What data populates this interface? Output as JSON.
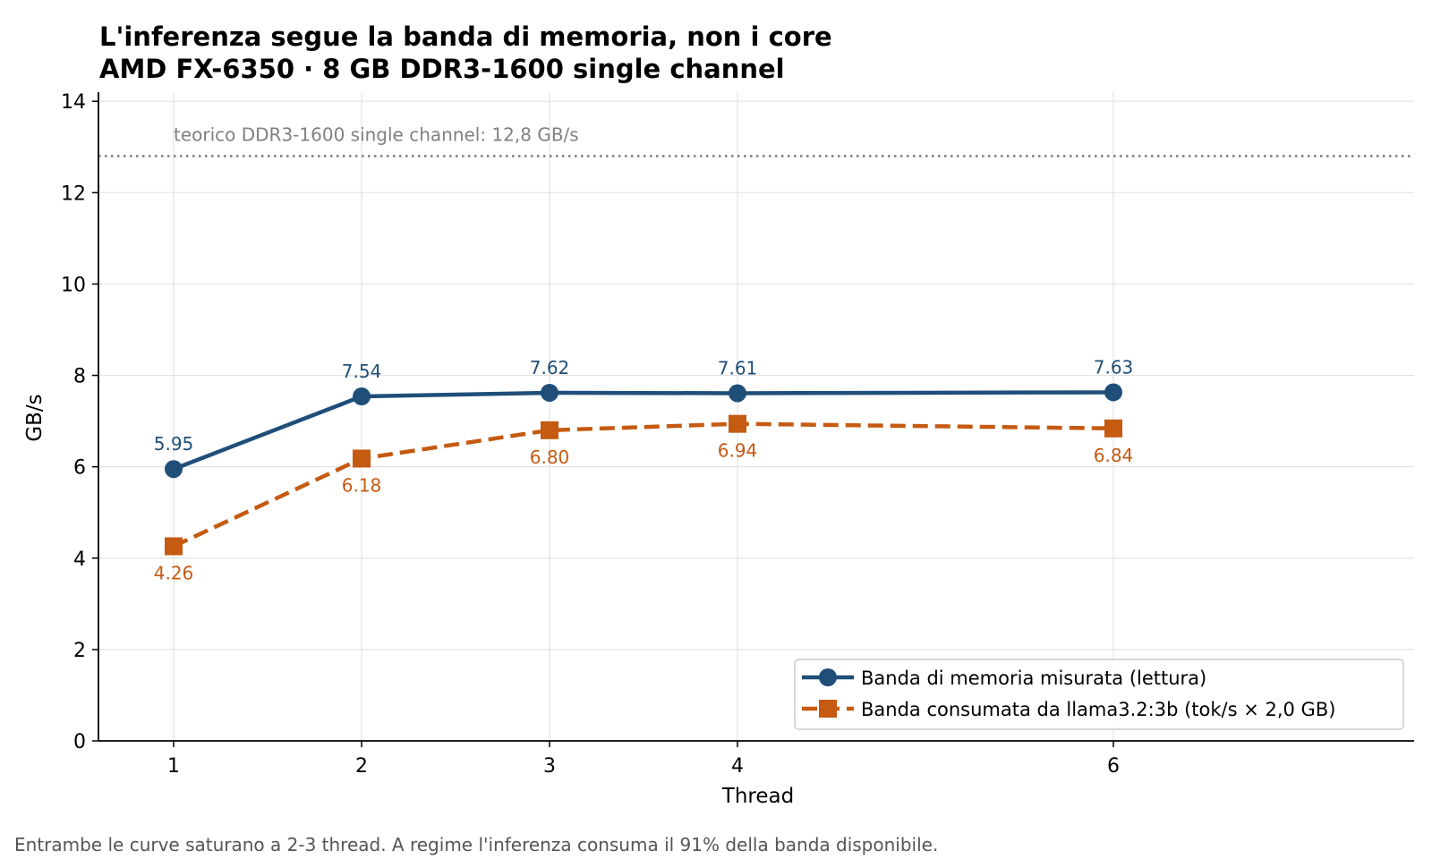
{
  "chart_data": {
    "type": "line",
    "title": "L'inferenza segue la banda di memoria, non i core",
    "subtitle": "AMD FX-6350 · 8 GB DDR3-1600 single channel",
    "xlabel": "Thread",
    "ylabel": "GB/s",
    "x": [
      1,
      2,
      3,
      4,
      6
    ],
    "x_ticks": [
      1,
      2,
      3,
      4,
      6
    ],
    "xlim": [
      0.6,
      7.6
    ],
    "ylim": [
      0,
      14.2
    ],
    "y_ticks": [
      0,
      2,
      4,
      6,
      8,
      10,
      12,
      14
    ],
    "grid": true,
    "legend_position": "bottom-right",
    "series": [
      {
        "name": "Banda di memoria misurata (lettura)",
        "values": [
          5.95,
          7.54,
          7.62,
          7.61,
          7.63
        ],
        "labels": [
          "5.95",
          "7.54",
          "7.62",
          "7.61",
          "7.63"
        ],
        "color": "#1f4e79",
        "marker": "circle",
        "line_style": "solid",
        "label_position": "above"
      },
      {
        "name": "Banda consumata da llama3.2:3b (tok/s × 2,0 GB)",
        "values": [
          4.26,
          6.18,
          6.8,
          6.94,
          6.84
        ],
        "labels": [
          "4.26",
          "6.18",
          "6.80",
          "6.94",
          "6.84"
        ],
        "color": "#c55a11",
        "marker": "square",
        "line_style": "dashed",
        "label_position": "below"
      }
    ],
    "reference_line": {
      "value": 12.8,
      "label": "teorico DDR3-1600 single channel: 12,8 GB/s",
      "color": "#808080",
      "style": "dotted"
    },
    "footnote": "Entrambe le curve saturano a 2-3 thread. A regime l'inferenza consuma il 91% della banda disponibile."
  }
}
